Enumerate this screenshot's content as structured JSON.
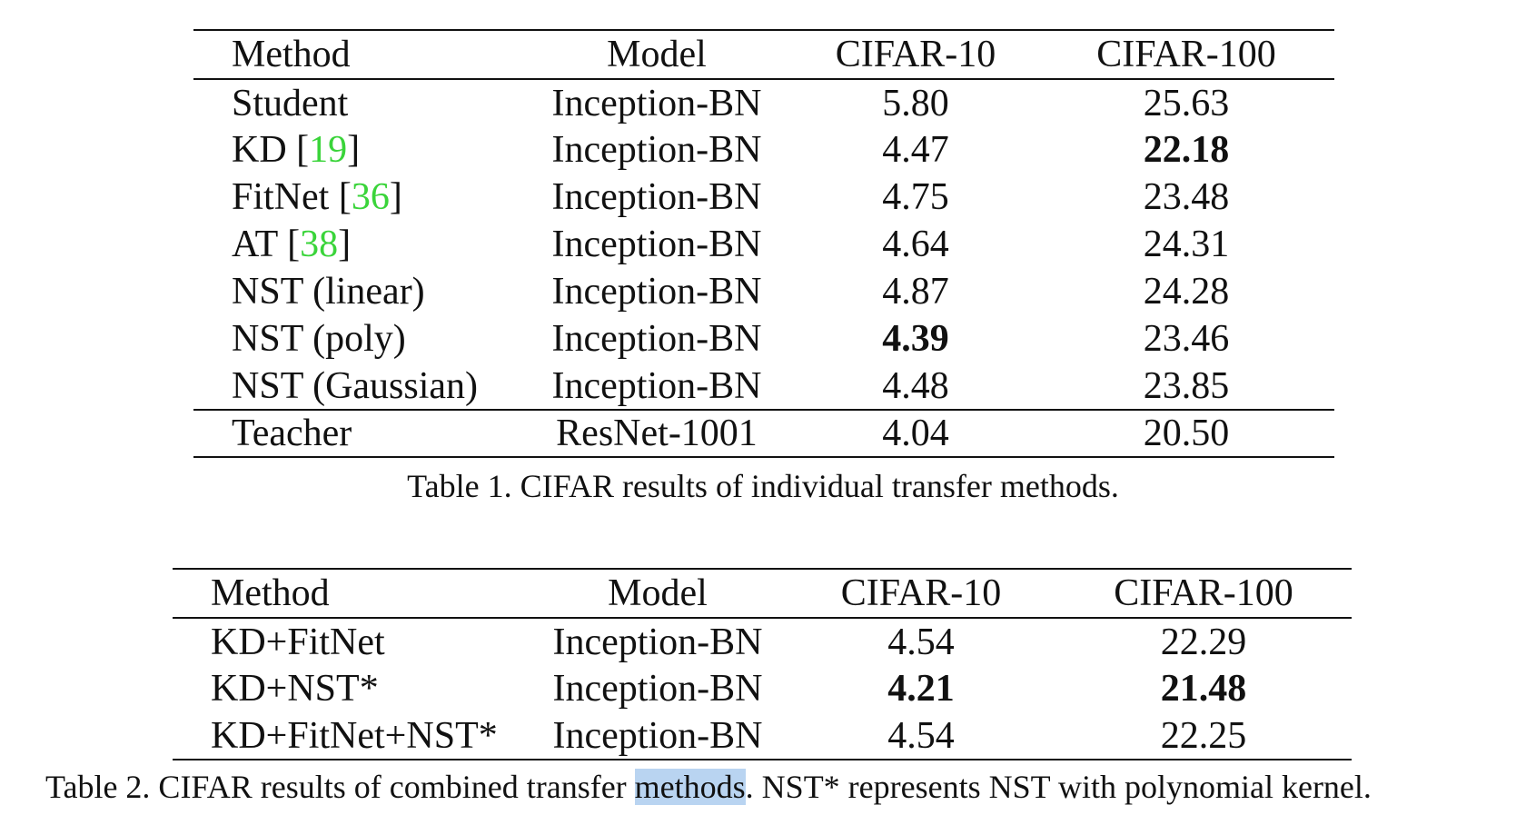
{
  "table1": {
    "headers": [
      "Method",
      "Model",
      "CIFAR-10",
      "CIFAR-100"
    ],
    "rows": [
      {
        "method": "Student",
        "cite": "",
        "model": "Inception-BN",
        "c10": "5.80",
        "c100": "25.63"
      },
      {
        "method": "KD",
        "cite": "19",
        "model": "Inception-BN",
        "c10": "4.47",
        "c100": "22.18"
      },
      {
        "method": "FitNet",
        "cite": "36",
        "model": "Inception-BN",
        "c10": "4.75",
        "c100": "23.48"
      },
      {
        "method": "AT",
        "cite": "38",
        "model": "Inception-BN",
        "c10": "4.64",
        "c100": "24.31"
      },
      {
        "method": "NST (linear)",
        "cite": "",
        "model": "Inception-BN",
        "c10": "4.87",
        "c100": "24.28"
      },
      {
        "method": "NST (poly)",
        "cite": "",
        "model": "Inception-BN",
        "c10": "4.39",
        "c100": "23.46"
      },
      {
        "method": "NST (Gaussian)",
        "cite": "",
        "model": "Inception-BN",
        "c10": "4.48",
        "c100": "23.85"
      }
    ],
    "teacher": {
      "method": "Teacher",
      "model": "ResNet-1001",
      "c10": "4.04",
      "c100": "20.50"
    },
    "caption": "Table 1. CIFAR results of individual transfer methods."
  },
  "table2": {
    "headers": [
      "Method",
      "Model",
      "CIFAR-10",
      "CIFAR-100"
    ],
    "rows": [
      {
        "method": "KD+FitNet",
        "model": "Inception-BN",
        "c10": "4.54",
        "c100": "22.29"
      },
      {
        "method": "KD+NST*",
        "model": "Inception-BN",
        "c10": "4.21",
        "c100": "21.48"
      },
      {
        "method": "KD+FitNet+NST*",
        "model": "Inception-BN",
        "c10": "4.54",
        "c100": "22.25"
      }
    ],
    "caption_before": "Table 2. CIFAR results of combined transfer ",
    "caption_highlight": "methods",
    "caption_after": ". NST* represents NST with polynomial kernel."
  },
  "colors": {
    "citation": "#3ad43a",
    "selection_highlight": "#b9d4f1"
  }
}
